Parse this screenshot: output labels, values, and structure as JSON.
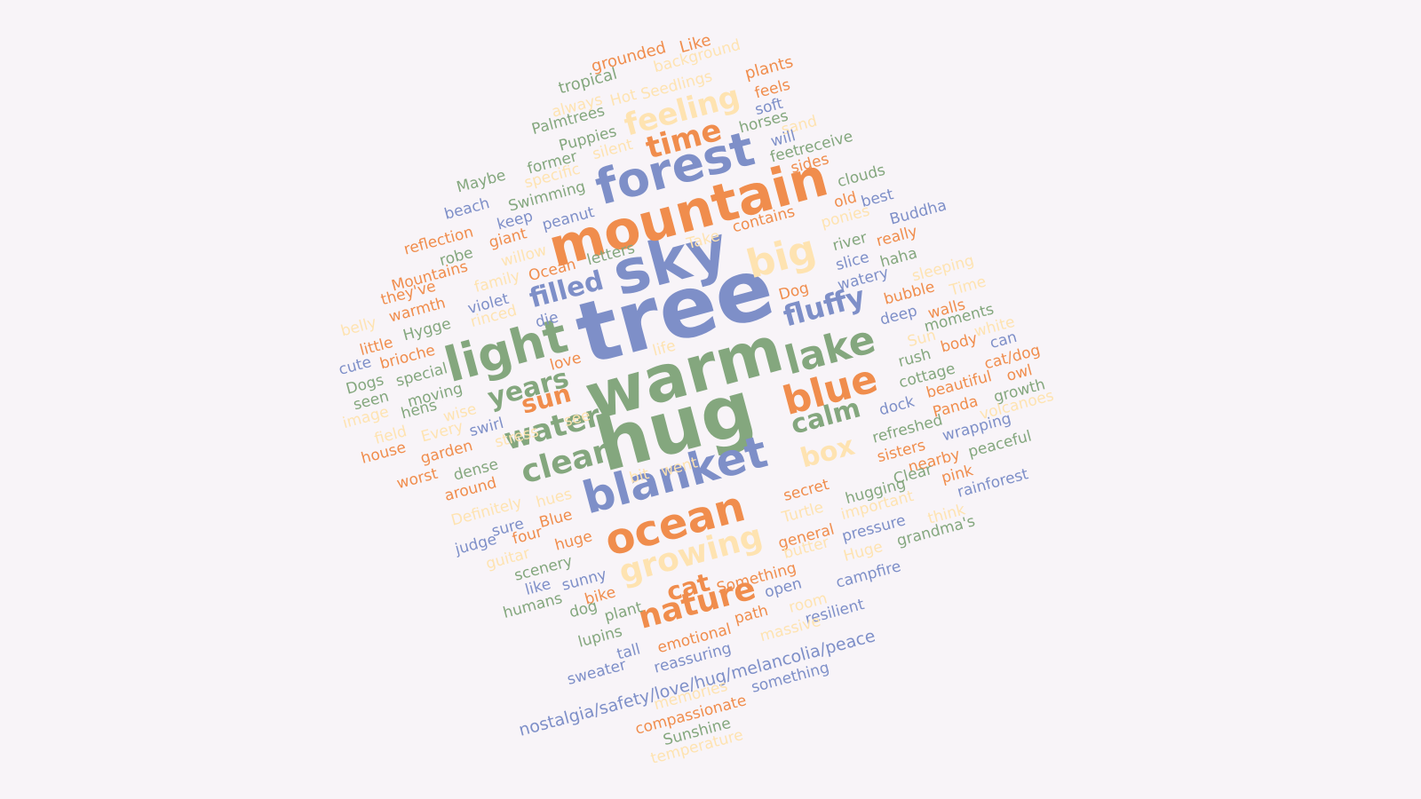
{
  "palette": {
    "background": "#f8f4f8",
    "blue": "#7e8fc8",
    "orange": "#f08d4d",
    "cream": "#fee3b1",
    "green": "#84a77e"
  },
  "cloud_words": [
    {
      "text": "tree",
      "weight": 10,
      "color": "blue"
    },
    {
      "text": "hug",
      "weight": 9.4,
      "color": "green"
    },
    {
      "text": "warm",
      "weight": 9,
      "color": "green"
    },
    {
      "text": "sky",
      "weight": 8.6,
      "color": "blue"
    },
    {
      "text": "mountain",
      "weight": 7.6,
      "color": "orange"
    },
    {
      "text": "light",
      "weight": 7.4,
      "color": "green"
    },
    {
      "text": "forest",
      "weight": 7.2,
      "color": "blue"
    },
    {
      "text": "blanket",
      "weight": 7,
      "color": "blue"
    },
    {
      "text": "lake",
      "weight": 6.8,
      "color": "green"
    },
    {
      "text": "blue",
      "weight": 6.6,
      "color": "orange"
    },
    {
      "text": "ocean",
      "weight": 6.6,
      "color": "orange"
    },
    {
      "text": "big",
      "weight": 6.4,
      "color": "cream"
    },
    {
      "text": "clean",
      "weight": 5.6,
      "color": "green"
    },
    {
      "text": "growing",
      "weight": 5.6,
      "color": "cream"
    },
    {
      "text": "nature",
      "weight": 5.4,
      "color": "orange"
    },
    {
      "text": "feeling",
      "weight": 5.2,
      "color": "cream"
    },
    {
      "text": "water",
      "weight": 5.2,
      "color": "green"
    },
    {
      "text": "years",
      "weight": 5,
      "color": "green"
    },
    {
      "text": "fluffy",
      "weight": 5,
      "color": "blue"
    },
    {
      "text": "calm",
      "weight": 5,
      "color": "green"
    },
    {
      "text": "time",
      "weight": 4.8,
      "color": "orange"
    },
    {
      "text": "filled",
      "weight": 4.6,
      "color": "blue"
    },
    {
      "text": "sun",
      "weight": 4.6,
      "color": "orange"
    },
    {
      "text": "box",
      "weight": 4.6,
      "color": "cream"
    },
    {
      "text": "cat",
      "weight": 4.6,
      "color": "orange"
    },
    {
      "text": "grounded",
      "weight": 2,
      "color": "orange"
    },
    {
      "text": "Like",
      "weight": 2,
      "color": "orange"
    },
    {
      "text": "background",
      "weight": 2,
      "color": "cream"
    },
    {
      "text": "tropical",
      "weight": 2,
      "color": "green"
    },
    {
      "text": "plants",
      "weight": 2,
      "color": "orange"
    },
    {
      "text": "Seedlings",
      "weight": 2,
      "color": "cream"
    },
    {
      "text": "Hot",
      "weight": 2,
      "color": "cream"
    },
    {
      "text": "always",
      "weight": 2,
      "color": "cream"
    },
    {
      "text": "feels",
      "weight": 2,
      "color": "orange"
    },
    {
      "text": "soft",
      "weight": 2,
      "color": "blue"
    },
    {
      "text": "Palmtrees",
      "weight": 2,
      "color": "green"
    },
    {
      "text": "horses",
      "weight": 2,
      "color": "green"
    },
    {
      "text": "sand",
      "weight": 2,
      "color": "cream"
    },
    {
      "text": "Puppies",
      "weight": 2,
      "color": "green"
    },
    {
      "text": "silent",
      "weight": 2,
      "color": "cream"
    },
    {
      "text": "will",
      "weight": 2,
      "color": "blue"
    },
    {
      "text": "receive",
      "weight": 2,
      "color": "green"
    },
    {
      "text": "former",
      "weight": 2,
      "color": "green"
    },
    {
      "text": "feet",
      "weight": 2,
      "color": "green"
    },
    {
      "text": "sides",
      "weight": 2,
      "color": "orange"
    },
    {
      "text": "Maybe",
      "weight": 2,
      "color": "green"
    },
    {
      "text": "specific",
      "weight": 2,
      "color": "cream"
    },
    {
      "text": "clouds",
      "weight": 2,
      "color": "green"
    },
    {
      "text": "old",
      "weight": 2,
      "color": "orange"
    },
    {
      "text": "best",
      "weight": 2,
      "color": "blue"
    },
    {
      "text": "Swimming",
      "weight": 2,
      "color": "green"
    },
    {
      "text": "beach",
      "weight": 2,
      "color": "blue"
    },
    {
      "text": "keep",
      "weight": 2,
      "color": "blue"
    },
    {
      "text": "peanut",
      "weight": 2,
      "color": "blue"
    },
    {
      "text": "contains",
      "weight": 2,
      "color": "orange"
    },
    {
      "text": "ponies",
      "weight": 2,
      "color": "cream"
    },
    {
      "text": "Buddha",
      "weight": 2,
      "color": "blue"
    },
    {
      "text": "reflection",
      "weight": 2,
      "color": "orange"
    },
    {
      "text": "giant",
      "weight": 2,
      "color": "orange"
    },
    {
      "text": "Take",
      "weight": 2,
      "color": "cream"
    },
    {
      "text": "river",
      "weight": 2,
      "color": "green"
    },
    {
      "text": "really",
      "weight": 2,
      "color": "orange"
    },
    {
      "text": "robe",
      "weight": 2,
      "color": "green"
    },
    {
      "text": "willow",
      "weight": 2,
      "color": "cream"
    },
    {
      "text": "letters",
      "weight": 2,
      "color": "green"
    },
    {
      "text": "slice",
      "weight": 2,
      "color": "blue"
    },
    {
      "text": "haha",
      "weight": 2,
      "color": "green"
    },
    {
      "text": "Mountains",
      "weight": 2,
      "color": "orange"
    },
    {
      "text": "Ocean",
      "weight": 2,
      "color": "orange"
    },
    {
      "text": "family",
      "weight": 2,
      "color": "cream"
    },
    {
      "text": "watery",
      "weight": 2,
      "color": "blue"
    },
    {
      "text": "sleeping",
      "weight": 2,
      "color": "cream"
    },
    {
      "text": "they've",
      "weight": 2,
      "color": "orange"
    },
    {
      "text": "Dog",
      "weight": 2,
      "color": "orange"
    },
    {
      "text": "bubble",
      "weight": 2,
      "color": "orange"
    },
    {
      "text": "Time",
      "weight": 2,
      "color": "cream"
    },
    {
      "text": "violet",
      "weight": 2,
      "color": "blue"
    },
    {
      "text": "warmth",
      "weight": 2,
      "color": "orange"
    },
    {
      "text": "rinced",
      "weight": 2,
      "color": "cream"
    },
    {
      "text": "deep",
      "weight": 2,
      "color": "blue"
    },
    {
      "text": "walls",
      "weight": 2,
      "color": "orange"
    },
    {
      "text": "belly",
      "weight": 2,
      "color": "cream"
    },
    {
      "text": "Hygge",
      "weight": 2,
      "color": "green"
    },
    {
      "text": "die",
      "weight": 2,
      "color": "blue"
    },
    {
      "text": "moments",
      "weight": 2,
      "color": "green"
    },
    {
      "text": "little",
      "weight": 2,
      "color": "orange"
    },
    {
      "text": "Sun",
      "weight": 2,
      "color": "cream"
    },
    {
      "text": "white",
      "weight": 2,
      "color": "cream"
    },
    {
      "text": "cute",
      "weight": 2,
      "color": "blue"
    },
    {
      "text": "brioche",
      "weight": 2,
      "color": "orange"
    },
    {
      "text": "life",
      "weight": 2,
      "color": "cream"
    },
    {
      "text": "body",
      "weight": 2,
      "color": "orange"
    },
    {
      "text": "can",
      "weight": 2,
      "color": "blue"
    },
    {
      "text": "Dogs",
      "weight": 2,
      "color": "green"
    },
    {
      "text": "special",
      "weight": 2,
      "color": "green"
    },
    {
      "text": "love",
      "weight": 2,
      "color": "orange"
    },
    {
      "text": "rush",
      "weight": 2,
      "color": "green"
    },
    {
      "text": "cat/dog",
      "weight": 2,
      "color": "orange"
    },
    {
      "text": "seen",
      "weight": 2,
      "color": "green"
    },
    {
      "text": "moving",
      "weight": 2,
      "color": "green"
    },
    {
      "text": "cottage",
      "weight": 2,
      "color": "green"
    },
    {
      "text": "owl",
      "weight": 2,
      "color": "orange"
    },
    {
      "text": "image",
      "weight": 2,
      "color": "cream"
    },
    {
      "text": "hens",
      "weight": 2,
      "color": "green"
    },
    {
      "text": "beautiful",
      "weight": 2,
      "color": "orange"
    },
    {
      "text": "growth",
      "weight": 2,
      "color": "green"
    },
    {
      "text": "wise",
      "weight": 2,
      "color": "cream"
    },
    {
      "text": "see",
      "weight": 2,
      "color": "cream"
    },
    {
      "text": "dock",
      "weight": 2,
      "color": "blue"
    },
    {
      "text": "Panda",
      "weight": 2,
      "color": "orange"
    },
    {
      "text": "volcanoes",
      "weight": 2,
      "color": "cream"
    },
    {
      "text": "field",
      "weight": 2,
      "color": "cream"
    },
    {
      "text": "Every",
      "weight": 2,
      "color": "cream"
    },
    {
      "text": "swirl",
      "weight": 2,
      "color": "blue"
    },
    {
      "text": "refreshed",
      "weight": 2,
      "color": "green"
    },
    {
      "text": "stress",
      "weight": 2,
      "color": "cream"
    },
    {
      "text": "wrapping",
      "weight": 2,
      "color": "blue"
    },
    {
      "text": "house",
      "weight": 2,
      "color": "orange"
    },
    {
      "text": "garden",
      "weight": 2,
      "color": "orange"
    },
    {
      "text": "sisters",
      "weight": 2,
      "color": "orange"
    },
    {
      "text": "peaceful",
      "weight": 2,
      "color": "green"
    },
    {
      "text": "worst",
      "weight": 2,
      "color": "orange"
    },
    {
      "text": "dense",
      "weight": 2,
      "color": "green"
    },
    {
      "text": "bit",
      "weight": 2,
      "color": "cream"
    },
    {
      "text": "went",
      "weight": 2,
      "color": "cream"
    },
    {
      "text": "nearby",
      "weight": 2,
      "color": "orange"
    },
    {
      "text": "around",
      "weight": 2,
      "color": "orange"
    },
    {
      "text": "Clear",
      "weight": 2,
      "color": "green"
    },
    {
      "text": "pink",
      "weight": 2,
      "color": "orange"
    },
    {
      "text": "secret",
      "weight": 2,
      "color": "orange"
    },
    {
      "text": "hugging",
      "weight": 2,
      "color": "green"
    },
    {
      "text": "rainforest",
      "weight": 2,
      "color": "blue"
    },
    {
      "text": "Definitely",
      "weight": 2,
      "color": "cream"
    },
    {
      "text": "hues",
      "weight": 2,
      "color": "cream"
    },
    {
      "text": "important",
      "weight": 2,
      "color": "cream"
    },
    {
      "text": "think",
      "weight": 2,
      "color": "cream"
    },
    {
      "text": "Turtle",
      "weight": 2,
      "color": "cream"
    },
    {
      "text": "sure",
      "weight": 2,
      "color": "blue"
    },
    {
      "text": "Blue",
      "weight": 2,
      "color": "orange"
    },
    {
      "text": "pressure",
      "weight": 2,
      "color": "blue"
    },
    {
      "text": "grandma's",
      "weight": 2,
      "color": "green"
    },
    {
      "text": "judge",
      "weight": 2,
      "color": "blue"
    },
    {
      "text": "four",
      "weight": 2,
      "color": "orange"
    },
    {
      "text": "huge",
      "weight": 2,
      "color": "orange"
    },
    {
      "text": "general",
      "weight": 2,
      "color": "orange"
    },
    {
      "text": "guitar",
      "weight": 2,
      "color": "cream"
    },
    {
      "text": "butter",
      "weight": 2,
      "color": "cream"
    },
    {
      "text": "Huge",
      "weight": 2,
      "color": "cream"
    },
    {
      "text": "scenery",
      "weight": 2,
      "color": "green"
    },
    {
      "text": "Something",
      "weight": 2,
      "color": "orange"
    },
    {
      "text": "campfire",
      "weight": 2,
      "color": "blue"
    },
    {
      "text": "like",
      "weight": 2,
      "color": "blue"
    },
    {
      "text": "sunny",
      "weight": 2,
      "color": "blue"
    },
    {
      "text": "open",
      "weight": 2,
      "color": "blue"
    },
    {
      "text": "humans",
      "weight": 2,
      "color": "green"
    },
    {
      "text": "bike",
      "weight": 2,
      "color": "orange"
    },
    {
      "text": "room",
      "weight": 2,
      "color": "cream"
    },
    {
      "text": "dog",
      "weight": 2,
      "color": "green"
    },
    {
      "text": "plant",
      "weight": 2,
      "color": "green"
    },
    {
      "text": "path",
      "weight": 2,
      "color": "orange"
    },
    {
      "text": "resilient",
      "weight": 2,
      "color": "blue"
    },
    {
      "text": "lupins",
      "weight": 2,
      "color": "green"
    },
    {
      "text": "emotional",
      "weight": 2,
      "color": "orange"
    },
    {
      "text": "massive",
      "weight": 2,
      "color": "cream"
    },
    {
      "text": "tall",
      "weight": 2,
      "color": "blue"
    },
    {
      "text": "reassuring",
      "weight": 2,
      "color": "blue"
    },
    {
      "text": "sweater",
      "weight": 2,
      "color": "blue"
    },
    {
      "text": "nostalgia/safety/love/hug/melancolia/peace",
      "weight": 2.2,
      "color": "blue"
    },
    {
      "text": "something",
      "weight": 2,
      "color": "blue"
    },
    {
      "text": "memories",
      "weight": 2,
      "color": "cream"
    },
    {
      "text": "compassionate",
      "weight": 2,
      "color": "orange"
    },
    {
      "text": "Sunshine",
      "weight": 2,
      "color": "green"
    },
    {
      "text": "temperature",
      "weight": 2,
      "color": "cream"
    }
  ]
}
